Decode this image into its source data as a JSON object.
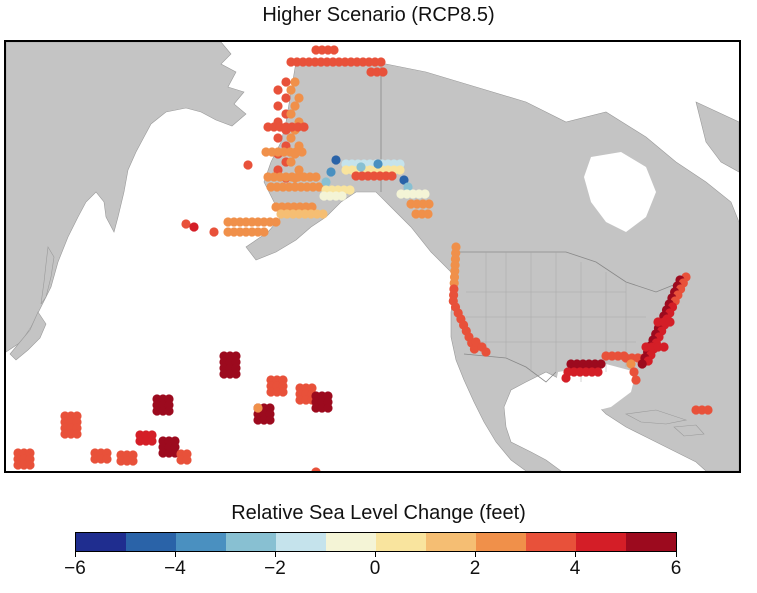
{
  "title": "Higher Scenario (RCP8.5)",
  "legend": {
    "title": "Relative Sea Level Change (feet)",
    "colors": [
      "#1f2d8f",
      "#2a63a8",
      "#4a90c0",
      "#88c0d2",
      "#c5e3ec",
      "#f4f4d6",
      "#f9e49e",
      "#f5be73",
      "#f0904a",
      "#e8513a",
      "#d41e27",
      "#9c0a1e"
    ],
    "tick_labels": [
      "−6",
      "−4",
      "−2",
      "0",
      "2",
      "4",
      "6"
    ]
  },
  "map": {
    "land_color": "#c4c4c4",
    "border_color": "#888888"
  }
}
